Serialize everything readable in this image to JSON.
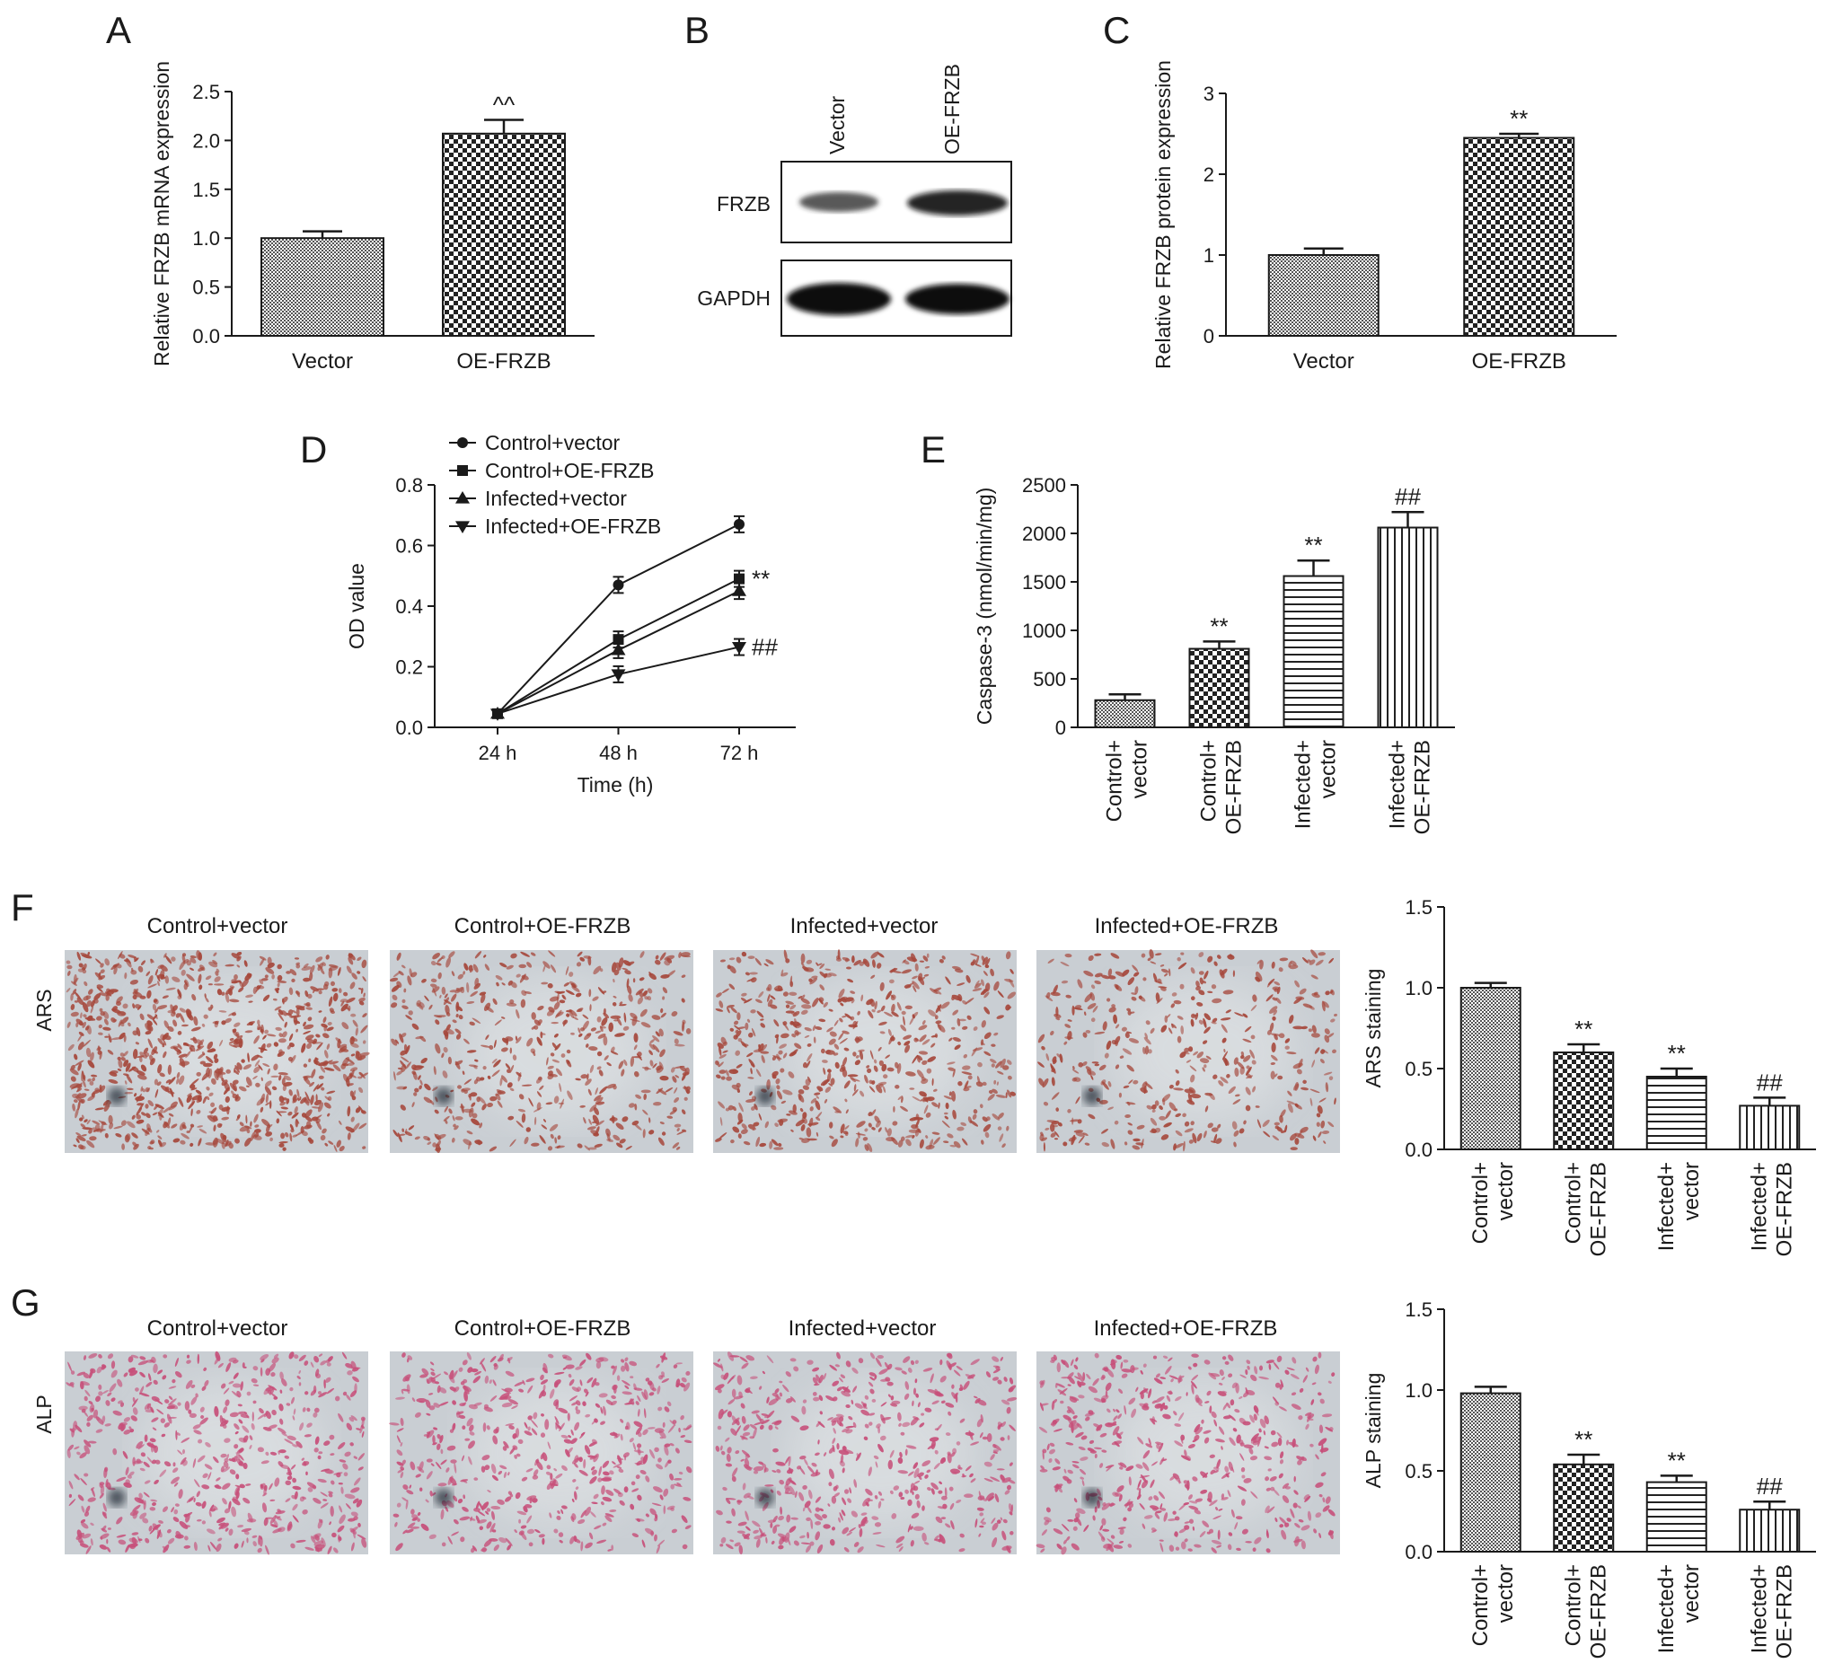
{
  "colors": {
    "ink": "#1a1a1a",
    "bar_fill": "#ffffff",
    "micro_bg": "#c9ced3",
    "ars_cell": "#a6483c",
    "alp_cell": "#c7507a"
  },
  "blot": {
    "letter": "B",
    "lanes": [
      "Vector",
      "OE-FRZB"
    ],
    "rows": [
      "FRZB",
      "GAPDH"
    ]
  },
  "micrographs": {
    "F": {
      "letter": "F",
      "row_label": "ARS",
      "titles": [
        "Control+vector",
        "Control+OE-FRZB",
        "Infected+vector",
        "Infected+OE-FRZB"
      ]
    },
    "G": {
      "letter": "G",
      "row_label": "ALP",
      "titles": [
        "Control+vector",
        "Control+OE-FRZB",
        "Infected+vector",
        "Infected+OE-FRZB"
      ]
    }
  },
  "chart_data": [
    {
      "id": "A",
      "letter": "A",
      "type": "bar",
      "ylabel": "Relative FRZB mRNA expression",
      "categories": [
        "Vector",
        "OE-FRZB"
      ],
      "values": [
        1.0,
        2.07
      ],
      "errors": [
        0.07,
        0.14
      ],
      "annotations": [
        "",
        "^^"
      ],
      "patterns": [
        "pat-fine",
        "pat-check"
      ],
      "ylim": [
        0,
        2.5
      ],
      "yticks": [
        "0.0",
        "0.5",
        "1.0",
        "1.5",
        "2.0",
        "2.5"
      ]
    },
    {
      "id": "C",
      "letter": "C",
      "type": "bar",
      "ylabel": "Relative FRZB protein expression",
      "categories": [
        "Vector",
        "OE-FRZB"
      ],
      "values": [
        1.0,
        2.45
      ],
      "errors": [
        0.08,
        0.05
      ],
      "annotations": [
        "",
        "**"
      ],
      "patterns": [
        "pat-fine",
        "pat-check"
      ],
      "ylim": [
        0,
        3
      ],
      "yticks": [
        "0",
        "1",
        "2",
        "3"
      ]
    },
    {
      "id": "D",
      "letter": "D",
      "type": "line",
      "xlabel": "Time (h)",
      "ylabel": "OD value",
      "x": [
        "24 h",
        "48 h",
        "72 h"
      ],
      "ylim": [
        0,
        0.8
      ],
      "yticks": [
        "0.0",
        "0.2",
        "0.4",
        "0.6",
        "0.8"
      ],
      "legend_position": "top-left",
      "series": [
        {
          "name": "Control+vector",
          "values": [
            0.045,
            0.47,
            0.67
          ],
          "marker": "circle",
          "annotation": ""
        },
        {
          "name": "Control+OE-FRZB",
          "values": [
            0.045,
            0.29,
            0.49
          ],
          "marker": "square",
          "annotation": "**"
        },
        {
          "name": "Infected+vector",
          "values": [
            0.045,
            0.255,
            0.45
          ],
          "marker": "triangle-up",
          "annotation": ""
        },
        {
          "name": "Infected+OE-FRZB",
          "values": [
            0.045,
            0.175,
            0.265
          ],
          "marker": "triangle-down",
          "annotation": "##"
        }
      ]
    },
    {
      "id": "E",
      "letter": "E",
      "type": "bar",
      "ylabel": "Caspase-3 (nmol/min/mg)",
      "categories": [
        [
          "Control+",
          "vector"
        ],
        [
          "Control+",
          "OE-FRZB"
        ],
        [
          "Infected+",
          "vector"
        ],
        [
          "Infected+",
          "OE-FRZB"
        ]
      ],
      "values": [
        280,
        810,
        1560,
        2060
      ],
      "errors": [
        60,
        75,
        160,
        160
      ],
      "annotations": [
        "",
        "**",
        "**",
        "##"
      ],
      "patterns": [
        "pat-fine",
        "pat-check",
        "pat-hstripe",
        "pat-vstripe"
      ],
      "ylim": [
        0,
        2500
      ],
      "yticks": [
        "0",
        "500",
        "1000",
        "1500",
        "2000",
        "2500"
      ]
    },
    {
      "id": "F",
      "type": "bar",
      "ylabel": "ARS staining",
      "categories": [
        [
          "Control+",
          "vector"
        ],
        [
          "Control+",
          "OE-FRZB"
        ],
        [
          "Infected+",
          "vector"
        ],
        [
          "Infected+",
          "OE-FRZB"
        ]
      ],
      "values": [
        1.0,
        0.6,
        0.45,
        0.27
      ],
      "errors": [
        0.03,
        0.05,
        0.05,
        0.05
      ],
      "annotations": [
        "",
        "**",
        "**",
        "##"
      ],
      "patterns": [
        "pat-fine",
        "pat-check",
        "pat-hstripe",
        "pat-vstripe"
      ],
      "ylim": [
        0,
        1.5
      ],
      "yticks": [
        "0.0",
        "0.5",
        "1.0",
        "1.5"
      ]
    },
    {
      "id": "G",
      "type": "bar",
      "ylabel": "ALP staining",
      "categories": [
        [
          "Control+",
          "vector"
        ],
        [
          "Control+",
          "OE-FRZB"
        ],
        [
          "Infected+",
          "vector"
        ],
        [
          "Infected+",
          "OE-FRZB"
        ]
      ],
      "values": [
        0.98,
        0.54,
        0.43,
        0.26
      ],
      "errors": [
        0.04,
        0.06,
        0.04,
        0.05
      ],
      "annotations": [
        "",
        "**",
        "**",
        "##"
      ],
      "patterns": [
        "pat-fine",
        "pat-check",
        "pat-hstripe",
        "pat-vstripe"
      ],
      "ylim": [
        0,
        1.5
      ],
      "yticks": [
        "0.0",
        "0.5",
        "1.0",
        "1.5"
      ]
    }
  ]
}
